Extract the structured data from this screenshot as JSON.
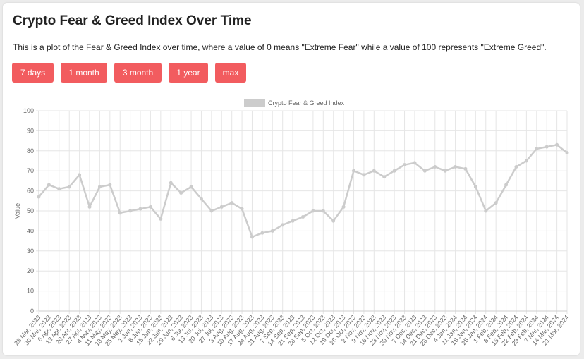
{
  "page": {
    "title": "Crypto Fear & Greed Index Over Time",
    "description": "This is a plot of the Fear & Greed Index over time, where a value of 0 means \"Extreme Fear\" while a value of 100 represents \"Extreme Greed\".",
    "buttons": [
      "7 days",
      "1 month",
      "3 month",
      "1 year",
      "max"
    ],
    "accent_color": "#f25c5f"
  },
  "chart_data": {
    "type": "line",
    "title": "",
    "xlabel": "",
    "ylabel": "Value",
    "ylim": [
      0,
      100
    ],
    "yticks": [
      0,
      10,
      20,
      30,
      40,
      50,
      60,
      70,
      80,
      90,
      100
    ],
    "grid": true,
    "legend": "top",
    "series": [
      {
        "name": "Crypto Fear & Greed Index",
        "color": "#cccccc",
        "x": [
          "2023-03-23",
          "2023-03-30",
          "2023-04-06",
          "2023-04-13",
          "2023-04-20",
          "2023-04-27",
          "2023-05-04",
          "2023-05-11",
          "2023-05-18",
          "2023-05-25",
          "2023-06-01",
          "2023-06-08",
          "2023-06-15",
          "2023-06-22",
          "2023-06-29",
          "2023-07-06",
          "2023-07-13",
          "2023-07-20",
          "2023-07-27",
          "2023-08-03",
          "2023-08-10",
          "2023-08-17",
          "2023-08-24",
          "2023-08-31",
          "2023-09-07",
          "2023-09-14",
          "2023-09-21",
          "2023-09-28",
          "2023-10-05",
          "2023-10-12",
          "2023-10-19",
          "2023-10-26",
          "2023-11-02",
          "2023-11-09",
          "2023-11-16",
          "2023-11-23",
          "2023-11-30",
          "2023-12-07",
          "2023-12-14",
          "2023-12-21",
          "2023-12-28",
          "2024-01-04",
          "2024-01-11",
          "2024-01-18",
          "2024-01-25",
          "2024-02-01",
          "2024-02-08",
          "2024-02-15",
          "2024-02-22",
          "2024-02-29",
          "2024-03-07",
          "2024-03-14",
          "2024-03-21"
        ],
        "values": [
          57,
          63,
          61,
          62,
          68,
          52,
          62,
          63,
          49,
          50,
          51,
          52,
          46,
          64,
          59,
          62,
          56,
          50,
          52,
          54,
          51,
          37,
          39,
          40,
          43,
          45,
          47,
          50,
          50,
          45,
          52,
          70,
          68,
          70,
          67,
          70,
          73,
          74,
          70,
          72,
          70,
          72,
          71,
          62,
          50,
          54,
          63,
          72,
          75,
          81,
          82,
          83,
          79
        ]
      }
    ],
    "x_tick_labels": [
      "23 Mar, 2023",
      "30 Mar, 2023",
      "6 Apr, 2023",
      "13 Apr, 2023",
      "20 Apr, 2023",
      "27 Apr, 2023",
      "4 May, 2023",
      "11 May, 2023",
      "18 May, 2023",
      "25 May, 2023",
      "1 Jun, 2023",
      "8 Jun, 2023",
      "15 Jun, 2023",
      "22 Jun, 2023",
      "29 Jun, 2023",
      "6 Jul, 2023",
      "13 Jul, 2023",
      "20 Jul, 2023",
      "27 Jul, 2023",
      "3 Aug, 2023",
      "10 Aug, 2023",
      "17 Aug, 2023",
      "24 Aug, 2023",
      "31 Aug, 2023",
      "7 Sep, 2023",
      "14 Sep, 2023",
      "21 Sep, 2023",
      "28 Sep, 2023",
      "5 Oct, 2023",
      "12 Oct, 2023",
      "19 Oct, 2023",
      "26 Oct, 2023",
      "2 Nov, 2023",
      "9 Nov, 2023",
      "16 Nov, 2023",
      "23 Nov, 2023",
      "30 Nov, 2023",
      "7 Dec, 2023",
      "14 Dec, 2023",
      "21 Dec, 2023",
      "28 Dec, 2023",
      "4 Jan, 2024",
      "11 Jan, 2024",
      "18 Jan, 2024",
      "25 Jan, 2024",
      "1 Feb, 2024",
      "8 Feb, 2024",
      "15 Feb, 2024",
      "22 Feb, 2024",
      "29 Feb, 2024",
      "7 Mar, 2024",
      "14 Mar, 2024",
      "21 Mar, 2024"
    ]
  }
}
